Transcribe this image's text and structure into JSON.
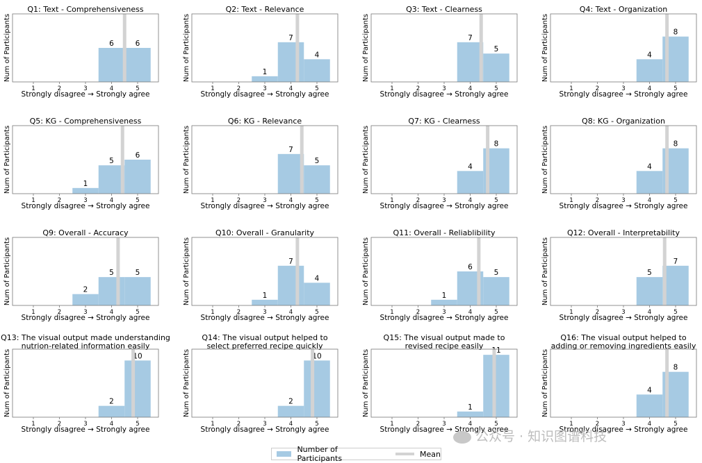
{
  "chart_data": [
    {
      "type": "bar",
      "title": [
        "Q1: Text - Comprehensiveness"
      ],
      "categories": [
        "1",
        "2",
        "3",
        "4",
        "5"
      ],
      "values": [
        0,
        0,
        0,
        6,
        6
      ],
      "mean": 4.5,
      "xlabel": "Strongly disagree → Strongly agree",
      "ylabel": "Num of Participants",
      "ylim": [
        0,
        12
      ]
    },
    {
      "type": "bar",
      "title": [
        "Q2: Text - Relevance"
      ],
      "categories": [
        "1",
        "2",
        "3",
        "4",
        "5"
      ],
      "values": [
        0,
        0,
        1,
        7,
        4
      ],
      "mean": 4.25,
      "xlabel": "Strongly disagree → Strongly agree",
      "ylabel": "Num of Participants",
      "ylim": [
        0,
        12
      ]
    },
    {
      "type": "bar",
      "title": [
        "Q3: Text - Clearness"
      ],
      "categories": [
        "1",
        "2",
        "3",
        "4",
        "5"
      ],
      "values": [
        0,
        0,
        0,
        7,
        5
      ],
      "mean": 4.42,
      "xlabel": "Strongly disagree → Strongly agree",
      "ylabel": "Num of Participants",
      "ylim": [
        0,
        12
      ]
    },
    {
      "type": "bar",
      "title": [
        "Q4: Text - Organization"
      ],
      "categories": [
        "1",
        "2",
        "3",
        "4",
        "5"
      ],
      "values": [
        0,
        0,
        0,
        4,
        8
      ],
      "mean": 4.67,
      "xlabel": "Strongly disagree → Strongly agree",
      "ylabel": "Num of Participants",
      "ylim": [
        0,
        12
      ]
    },
    {
      "type": "bar",
      "title": [
        "Q5: KG - Comprehensiveness"
      ],
      "categories": [
        "1",
        "2",
        "3",
        "4",
        "5"
      ],
      "values": [
        0,
        0,
        1,
        5,
        6
      ],
      "mean": 4.42,
      "xlabel": "Strongly disagree → Strongly agree",
      "ylabel": "Num of Participants",
      "ylim": [
        0,
        12
      ]
    },
    {
      "type": "bar",
      "title": [
        "Q6: KG - Relevance"
      ],
      "categories": [
        "1",
        "2",
        "3",
        "4",
        "5"
      ],
      "values": [
        0,
        0,
        0,
        7,
        5
      ],
      "mean": 4.42,
      "xlabel": "Strongly disagree → Strongly agree",
      "ylabel": "Num of Participants",
      "ylim": [
        0,
        12
      ]
    },
    {
      "type": "bar",
      "title": [
        "Q7: KG - Clearness"
      ],
      "categories": [
        "1",
        "2",
        "3",
        "4",
        "5"
      ],
      "values": [
        0,
        0,
        0,
        4,
        8
      ],
      "mean": 4.67,
      "xlabel": "Strongly disagree → Strongly agree",
      "ylabel": "Num of Participants",
      "ylim": [
        0,
        12
      ]
    },
    {
      "type": "bar",
      "title": [
        "Q8: KG - Organization"
      ],
      "categories": [
        "1",
        "2",
        "3",
        "4",
        "5"
      ],
      "values": [
        0,
        0,
        0,
        4,
        8
      ],
      "mean": 4.67,
      "xlabel": "Strongly disagree → Strongly agree",
      "ylabel": "Num of Participants",
      "ylim": [
        0,
        12
      ]
    },
    {
      "type": "bar",
      "title": [
        "Q9: Overall - Accuracy"
      ],
      "categories": [
        "1",
        "2",
        "3",
        "4",
        "5"
      ],
      "values": [
        0,
        0,
        2,
        5,
        5
      ],
      "mean": 4.25,
      "xlabel": "Strongly disagree → Strongly agree",
      "ylabel": "Num of Participants",
      "ylim": [
        0,
        12
      ]
    },
    {
      "type": "bar",
      "title": [
        "Q10: Overall - Granularity"
      ],
      "categories": [
        "1",
        "2",
        "3",
        "4",
        "5"
      ],
      "values": [
        0,
        0,
        1,
        7,
        4
      ],
      "mean": 4.25,
      "xlabel": "Strongly disagree → Strongly agree",
      "ylabel": "Num of Participants",
      "ylim": [
        0,
        12
      ]
    },
    {
      "type": "bar",
      "title": [
        "Q11: Overall - Reliablibility"
      ],
      "categories": [
        "1",
        "2",
        "3",
        "4",
        "5"
      ],
      "values": [
        0,
        0,
        1,
        6,
        5
      ],
      "mean": 4.33,
      "xlabel": "Strongly disagree → Strongly agree",
      "ylabel": "Num of Participants",
      "ylim": [
        0,
        12
      ]
    },
    {
      "type": "bar",
      "title": [
        "Q12: Overall - Interpretability"
      ],
      "categories": [
        "1",
        "2",
        "3",
        "4",
        "5"
      ],
      "values": [
        0,
        0,
        0,
        5,
        7
      ],
      "mean": 4.58,
      "xlabel": "Strongly disagree → Strongly agree",
      "ylabel": "Num of Participants",
      "ylim": [
        0,
        12
      ]
    },
    {
      "type": "bar",
      "title": [
        "Q13: The visual output made understanding",
        "nutrion-related information easily"
      ],
      "categories": [
        "1",
        "2",
        "3",
        "4",
        "5"
      ],
      "values": [
        0,
        0,
        0,
        2,
        10
      ],
      "mean": 4.83,
      "xlabel": "Strongly disagree → Strongly agree",
      "ylabel": "Num of Participants",
      "ylim": [
        0,
        12
      ]
    },
    {
      "type": "bar",
      "title": [
        "Q14: The visual output helped to",
        "select preferred recipe quickly"
      ],
      "categories": [
        "1",
        "2",
        "3",
        "4",
        "5"
      ],
      "values": [
        0,
        0,
        0,
        2,
        10
      ],
      "mean": 4.83,
      "xlabel": "Strongly disagree → Strongly agree",
      "ylabel": "Num of Participants",
      "ylim": [
        0,
        12
      ]
    },
    {
      "type": "bar",
      "title": [
        "Q15: The visual output made to",
        "revised recipe easily"
      ],
      "categories": [
        "1",
        "2",
        "3",
        "4",
        "5"
      ],
      "values": [
        0,
        0,
        0,
        1,
        11
      ],
      "mean": 4.92,
      "xlabel": "Strongly disagree → Strongly agree",
      "ylabel": "Num of Participants",
      "ylim": [
        0,
        12
      ]
    },
    {
      "type": "bar",
      "title": [
        "Q16: The visual output helped to",
        "adding or removing ingredients easily"
      ],
      "categories": [
        "1",
        "2",
        "3",
        "4",
        "5"
      ],
      "values": [
        0,
        0,
        0,
        4,
        8
      ],
      "mean": 4.67,
      "xlabel": "Strongly disagree → Strongly agree",
      "ylabel": "Num of Participants",
      "ylim": [
        0,
        12
      ]
    }
  ],
  "legend": {
    "bar_label": "Number of Participants",
    "mean_label": "Mean"
  },
  "watermark": "公众号 · 知识图谱科技",
  "colors": {
    "bar": "#a6cae3",
    "mean": "#d3d3d3",
    "axis": "#777777"
  }
}
